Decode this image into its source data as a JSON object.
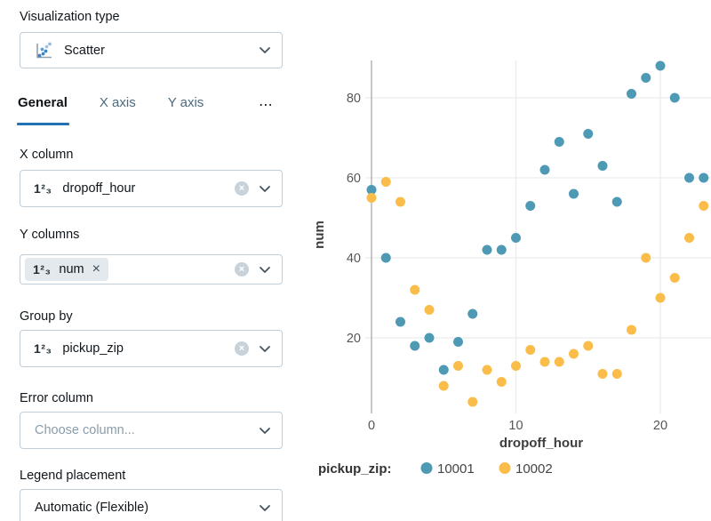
{
  "sidebar": {
    "visualization_type": {
      "label": "Visualization type",
      "value": "Scatter"
    },
    "tabs": [
      {
        "label": "General",
        "active": true
      },
      {
        "label": "X axis",
        "active": false
      },
      {
        "label": "Y axis",
        "active": false
      }
    ],
    "tabs_overflow": "⋯",
    "x_column": {
      "label": "X column",
      "value": "dropoff_hour"
    },
    "y_columns": {
      "label": "Y columns",
      "chip_value": "num"
    },
    "group_by": {
      "label": "Group by",
      "value": "pickup_zip"
    },
    "error_column": {
      "label": "Error column",
      "placeholder": "Choose column..."
    },
    "legend_placement": {
      "label": "Legend placement",
      "value": "Automatic (Flexible)"
    }
  },
  "icons": {
    "number_type": "1²₃",
    "clear": "×",
    "chip_remove": "×"
  },
  "chart_data": {
    "type": "scatter",
    "xlabel": "dropoff_hour",
    "ylabel": "num",
    "legend_title": "pickup_zip:",
    "legend_position": "bottom",
    "grid": true,
    "xlim": [
      -0.6,
      23.5
    ],
    "ylim": [
      0,
      90
    ],
    "xticks": [
      0,
      10,
      20
    ],
    "yticks": [
      20,
      40,
      60,
      80
    ],
    "x": [
      0,
      1,
      2,
      3,
      4,
      5,
      6,
      7,
      8,
      9,
      10,
      11,
      12,
      13,
      14,
      15,
      16,
      17,
      18,
      19,
      20,
      21,
      22,
      23
    ],
    "series": [
      {
        "name": "10001",
        "color": "#4E9AB5",
        "values": [
          57,
          40,
          24,
          18,
          20,
          12,
          19,
          26,
          42,
          42,
          45,
          53,
          62,
          69,
          56,
          71,
          63,
          54,
          81,
          85,
          88,
          80,
          60,
          60
        ]
      },
      {
        "name": "10002",
        "color": "#FABD4A",
        "values": [
          55,
          59,
          54,
          32,
          27,
          8,
          13,
          4,
          12,
          9,
          13,
          17,
          14,
          14,
          16,
          18,
          11,
          11,
          22,
          40,
          30,
          35,
          45,
          53
        ]
      }
    ]
  }
}
